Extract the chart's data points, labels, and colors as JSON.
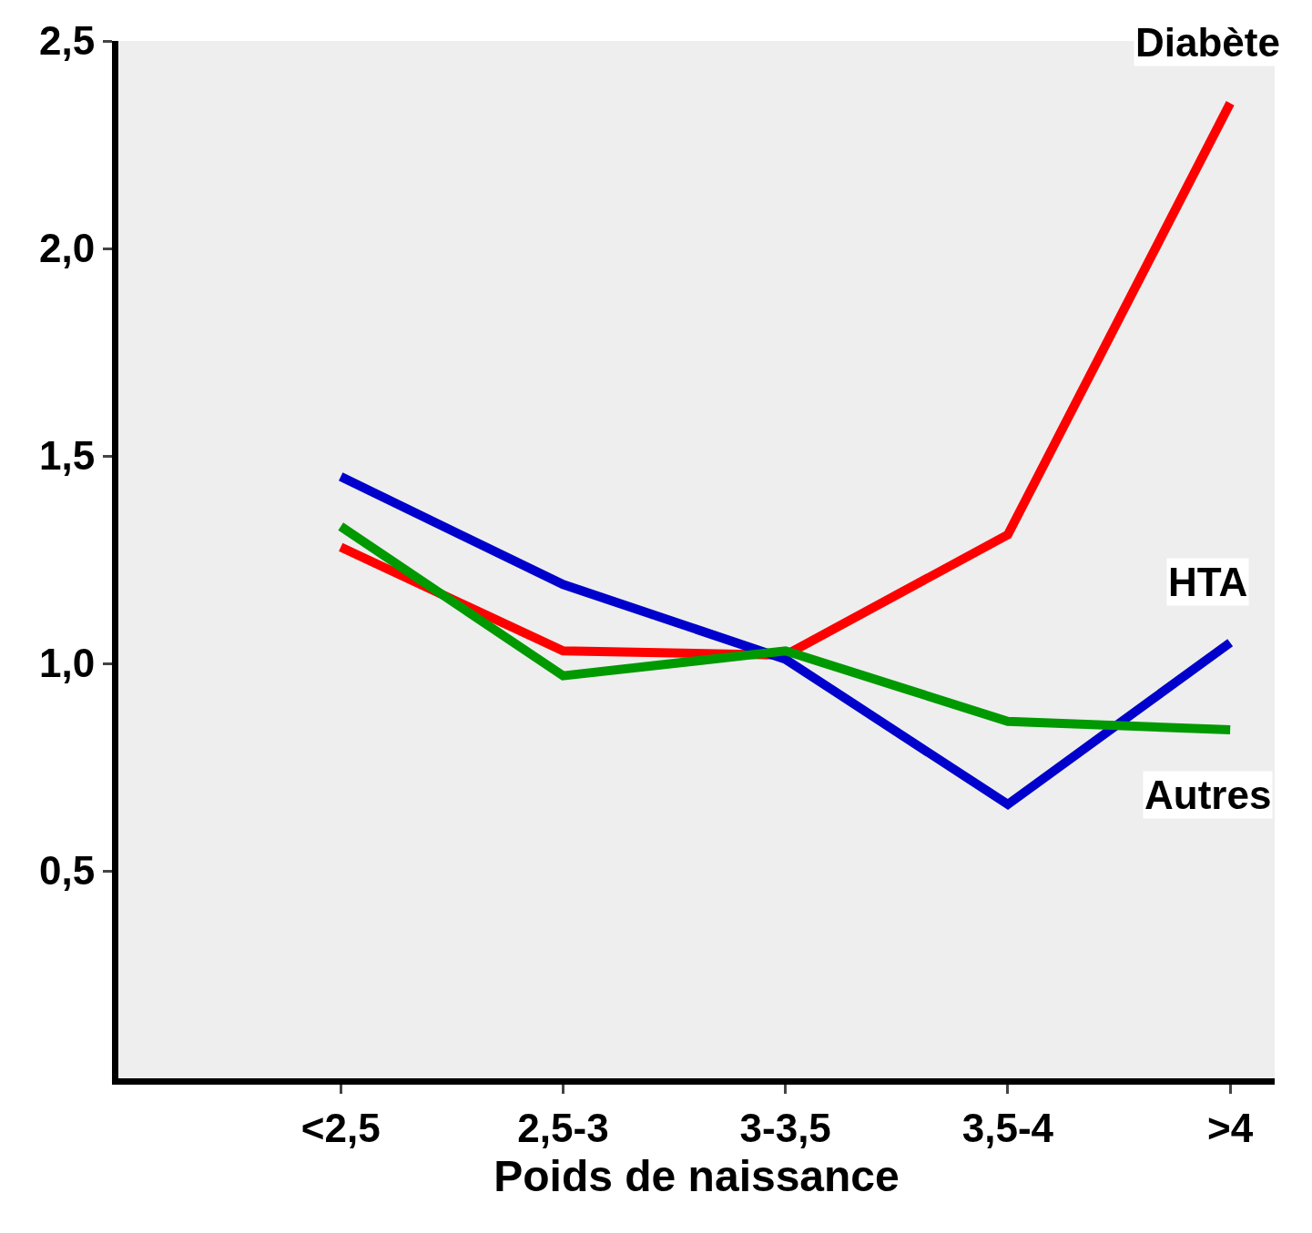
{
  "chart_data": {
    "type": "line",
    "xlabel": "Poids de naissance",
    "categories": [
      "<2,5",
      "2,5-3",
      "3-3,5",
      "3,5-4",
      ">4"
    ],
    "series": [
      {
        "name": "Diabète",
        "color": "#ff0000",
        "values": [
          1.28,
          1.03,
          1.02,
          1.31,
          2.35
        ]
      },
      {
        "name": "HTA",
        "color": "#0000cc",
        "values": [
          1.45,
          1.19,
          1.01,
          0.66,
          1.05
        ]
      },
      {
        "name": "Autres",
        "color": "#009900",
        "values": [
          1.33,
          0.97,
          1.03,
          0.86,
          0.84
        ]
      }
    ],
    "ylim": [
      0,
      2.5
    ],
    "yticks": [
      {
        "value": 0.5,
        "label": "0,5"
      },
      {
        "value": 1.0,
        "label": "1,0"
      },
      {
        "value": 1.5,
        "label": "1,5"
      },
      {
        "value": 2.0,
        "label": "2,0"
      },
      {
        "value": 2.5,
        "label": "2,5"
      }
    ],
    "grid": false,
    "legend": false,
    "line_style": "solid"
  }
}
